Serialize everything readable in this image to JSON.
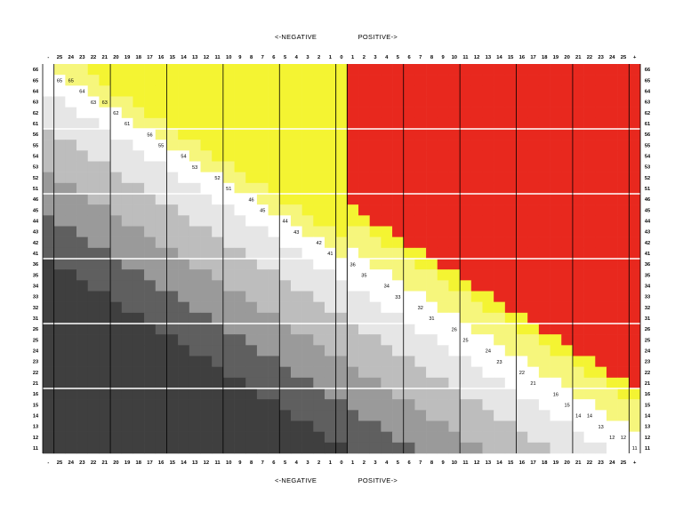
{
  "labels": {
    "negative": "<-NEGATIVE",
    "positive": "POSITIVE->"
  },
  "columns": {
    "left_end": "-",
    "negative": [
      "25",
      "24",
      "23",
      "22",
      "21",
      "20",
      "19",
      "18",
      "17",
      "16",
      "15",
      "14",
      "13",
      "12",
      "11",
      "10",
      "9",
      "8",
      "7",
      "6",
      "5",
      "4",
      "3",
      "2",
      "1"
    ],
    "center": "0",
    "positive": [
      "1",
      "2",
      "3",
      "4",
      "5",
      "6",
      "7",
      "8",
      "9",
      "10",
      "11",
      "12",
      "13",
      "14",
      "15",
      "16",
      "17",
      "18",
      "19",
      "20",
      "21",
      "22",
      "23",
      "24",
      "25"
    ],
    "right_end": "+"
  },
  "rows": [
    "66",
    "65",
    "64",
    "63",
    "62",
    "61",
    "56",
    "55",
    "54",
    "53",
    "52",
    "51",
    "46",
    "45",
    "44",
    "43",
    "42",
    "41",
    "36",
    "35",
    "34",
    "33",
    "32",
    "31",
    "26",
    "25",
    "24",
    "23",
    "22",
    "21",
    "16",
    "15",
    "14",
    "13",
    "12",
    "11"
  ],
  "colors": {
    "red": "#e8281e",
    "yellow_bright": "#f4f432",
    "yellow_light": "#f6f67c",
    "white": "#ffffff",
    "gray_light": "#e6e6e6",
    "gray_mid": "#bdbdbd",
    "gray_mid2": "#9a9a9a",
    "gray_dark": "#5f5f5f",
    "gray_darker": "#3f3f3f",
    "band_line": "#ffffff",
    "group_line": "#000000"
  }
}
